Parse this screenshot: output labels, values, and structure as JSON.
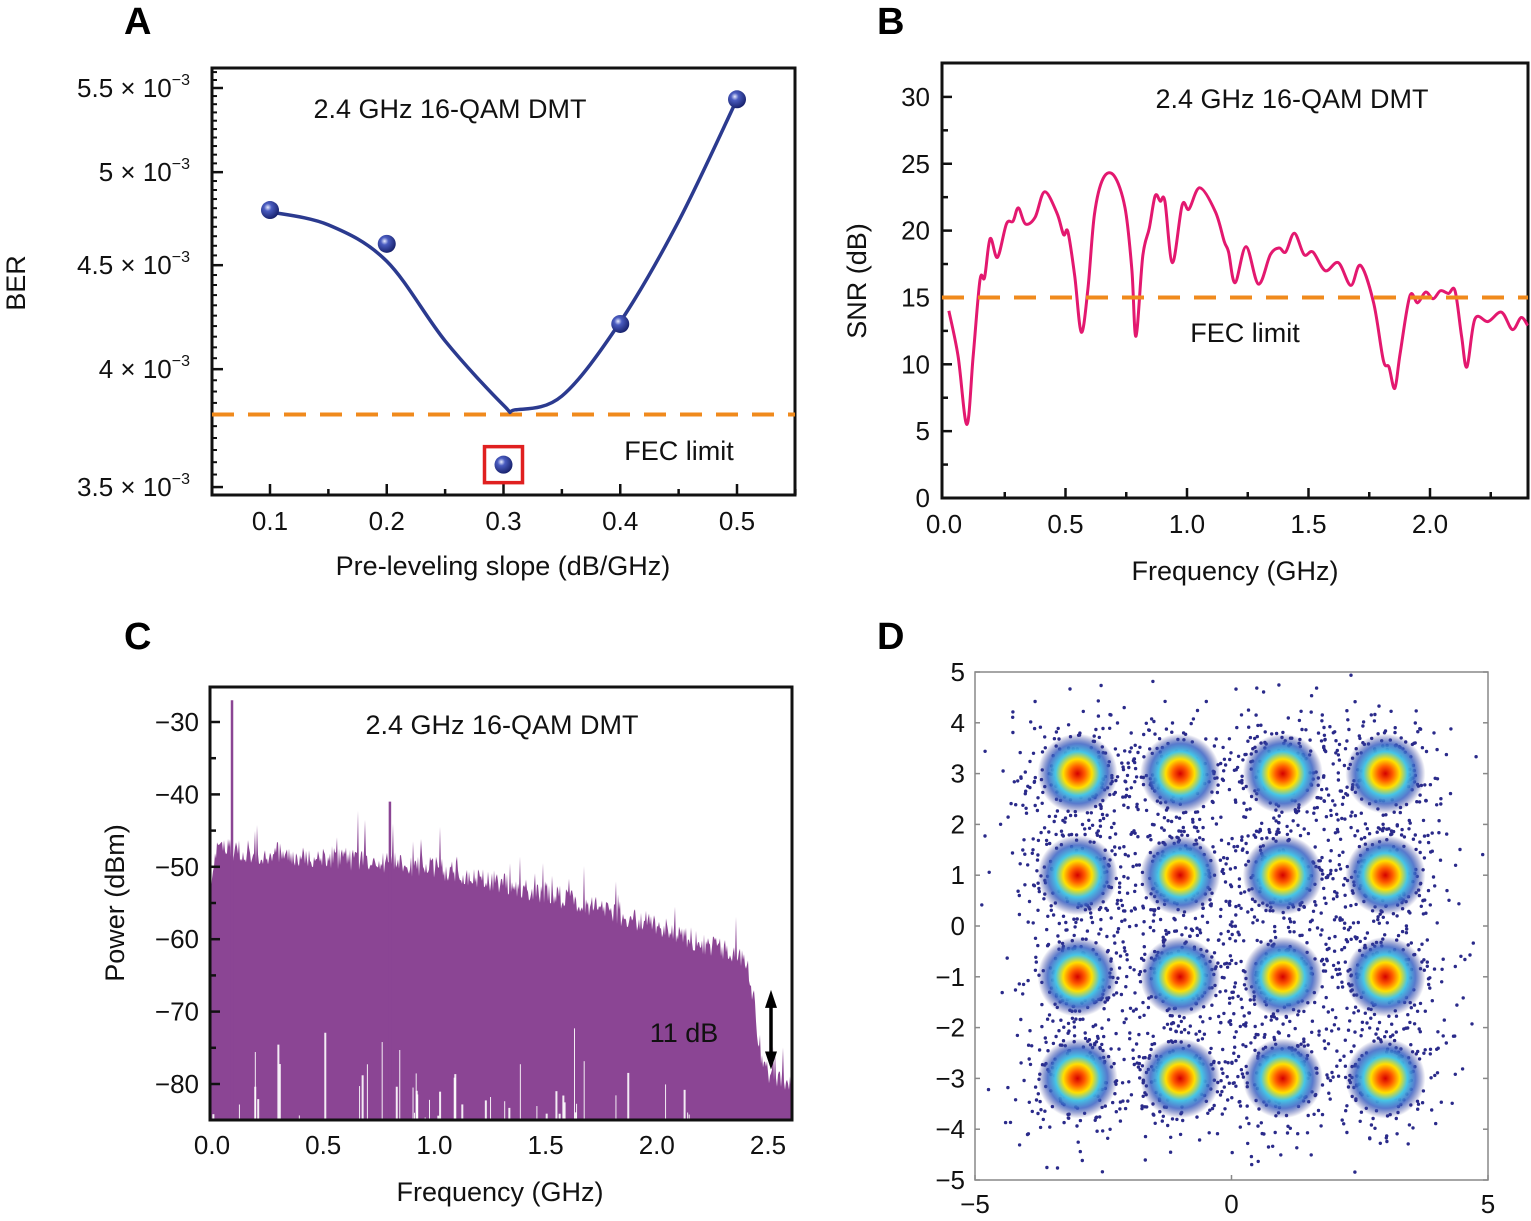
{
  "panel_labels": [
    "A",
    "B",
    "C",
    "D"
  ],
  "colors": {
    "fit_curve": "#2b3a8f",
    "points": "#2b3a9a",
    "fec_line": "#f08a1c",
    "highlight_box": "#e02020",
    "snr_line": "#e3186f",
    "spectrum_fill": "#8b4594",
    "annotation_11db": "#f2e000",
    "constellation_dots": "#2a2a8a"
  },
  "chart_data": [
    {
      "type": "scatter",
      "title": "2.4 GHz 16-QAM DMT",
      "xlabel": "Pre-leveling slope (dB/GHz)",
      "ylabel": "BER",
      "yscale": "log",
      "xlim": [
        0.05,
        0.55
      ],
      "ylim": [
        0.00347,
        0.00562
      ],
      "x_ticks": [
        0.1,
        0.2,
        0.3,
        0.4,
        0.5
      ],
      "x_tick_labels": [
        "0.1",
        "0.2",
        "0.3",
        "0.4",
        "0.5"
      ],
      "y_ticks": [
        0.0055,
        0.005,
        0.0045,
        0.004,
        0.0035
      ],
      "y_tick_labels": [
        {
          "base": "5.5 × 10",
          "exponent": "−3"
        },
        {
          "base": "5 × 10",
          "exponent": "−3"
        },
        {
          "base": "4.5 × 10",
          "exponent": "−3"
        },
        {
          "base": "4 × 10",
          "exponent": "−3"
        },
        {
          "base": "3.5 × 10",
          "exponent": "−3"
        }
      ],
      "points": {
        "x": [
          0.1,
          0.2,
          0.3,
          0.4,
          0.5
        ],
        "y": [
          0.00479,
          0.00461,
          0.00359,
          0.00421,
          0.00543
        ]
      },
      "fit_curve": {
        "x": [
          0.1,
          0.15,
          0.2,
          0.25,
          0.3,
          0.31,
          0.35,
          0.4,
          0.45,
          0.5
        ],
        "y": [
          0.00478,
          0.00471,
          0.00452,
          0.00413,
          0.00384,
          0.00382,
          0.00388,
          0.00422,
          0.00473,
          0.00543
        ]
      },
      "highlighted_point_x": 0.3,
      "fec_limit": {
        "value": 0.0038,
        "label": "FEC limit"
      }
    },
    {
      "type": "line",
      "title": "2.4 GHz 16-QAM DMT",
      "xlabel": "Frequency (GHz)",
      "ylabel": "SNR (dB)",
      "xlim": [
        0,
        2.41
      ],
      "ylim": [
        0,
        32.5
      ],
      "x_ticks": [
        0,
        0.5,
        1.0,
        1.5,
        2.0
      ],
      "x_tick_labels": [
        "0.0",
        "0.5",
        "1.0",
        "1.5",
        "2.0"
      ],
      "y_ticks": [
        0,
        5,
        10,
        15,
        20,
        25,
        30
      ],
      "y_tick_labels": [
        "0",
        "5",
        "10",
        "15",
        "20",
        "25",
        "30"
      ],
      "x": [
        0.02,
        0.058,
        0.094,
        0.12,
        0.148,
        0.167,
        0.19,
        0.22,
        0.257,
        0.284,
        0.306,
        0.335,
        0.375,
        0.414,
        0.465,
        0.492,
        0.51,
        0.538,
        0.565,
        0.592,
        0.619,
        0.655,
        0.7,
        0.745,
        0.773,
        0.79,
        0.818,
        0.845,
        0.869,
        0.89,
        0.909,
        0.94,
        0.98,
        1.008,
        1.053,
        1.117,
        1.153,
        1.171,
        1.198,
        1.243,
        1.294,
        1.343,
        1.379,
        1.406,
        1.442,
        1.482,
        1.518,
        1.569,
        1.623,
        1.674,
        1.714,
        1.768,
        1.808,
        1.831,
        1.855,
        1.877,
        1.917,
        1.949,
        1.982,
        2.013,
        2.043,
        2.076,
        2.103,
        2.13,
        2.152,
        2.185,
        2.239,
        2.294,
        2.339,
        2.375,
        2.402
      ],
      "y": [
        14.0,
        10.6,
        5.5,
        10.6,
        16.3,
        16.5,
        19.4,
        18.0,
        20.5,
        20.7,
        21.7,
        20.5,
        21.0,
        22.9,
        21.3,
        19.7,
        19.9,
        16.6,
        12.4,
        15.6,
        21.2,
        23.9,
        24.1,
        21.7,
        17.1,
        12.1,
        18.1,
        20.2,
        22.6,
        22.2,
        22.2,
        17.6,
        21.9,
        21.6,
        23.2,
        21.4,
        19.2,
        18.4,
        16.1,
        18.8,
        16.0,
        18.2,
        18.7,
        18.4,
        19.8,
        18.2,
        18.4,
        17.0,
        17.6,
        15.9,
        17.4,
        14.6,
        10.3,
        9.8,
        8.2,
        10.8,
        15.1,
        14.6,
        15.4,
        14.9,
        15.5,
        15.3,
        15.5,
        12.1,
        9.8,
        13.4,
        13.2,
        13.9,
        12.6,
        13.5,
        12.9
      ],
      "fec_limit": {
        "value": 15,
        "label": "FEC limit"
      }
    },
    {
      "type": "area",
      "title": "2.4 GHz 16-QAM DMT",
      "xlabel": "Frequency (GHz)",
      "ylabel": "Power (dBm)",
      "xlim": [
        -0.01,
        2.61
      ],
      "ylim": [
        -85,
        -25.2
      ],
      "x_ticks": [
        0,
        0.5,
        1.0,
        1.5,
        2.0,
        2.5
      ],
      "x_tick_labels": [
        "0.0",
        "0.5",
        "1.0",
        "1.5",
        "2.0",
        "2.5"
      ],
      "y_ticks": [
        -30,
        -40,
        -50,
        -60,
        -70,
        -80
      ],
      "y_tick_labels": [
        "−30",
        "−40",
        "−50",
        "−60",
        "−70",
        "−80"
      ],
      "envelope": {
        "x": [
          0.0,
          0.02,
          0.5,
          1.0,
          1.5,
          2.0,
          2.3,
          2.4,
          2.44,
          2.46,
          2.5,
          2.61
        ],
        "y": [
          -50,
          -46,
          -47,
          -48.5,
          -52,
          -56.5,
          -60,
          -61,
          -67,
          -75,
          -77,
          -79
        ]
      },
      "spikes": {
        "x": [
          0.09,
          0.8
        ],
        "y": [
          -27,
          -41
        ]
      },
      "annotation": {
        "label": "11 dB",
        "from": -67,
        "to": -78,
        "x": 2.4
      }
    },
    {
      "type": "scatter",
      "title": "",
      "xlim": [
        -5,
        5
      ],
      "ylim": [
        -5,
        5
      ],
      "x_ticks": [
        -5,
        0,
        5
      ],
      "x_tick_labels": [
        "−5",
        "0",
        "5"
      ],
      "y_ticks": [
        5,
        4,
        3,
        2,
        1,
        0,
        -1,
        -2,
        -3,
        -4,
        -5
      ],
      "y_tick_labels": [
        "5",
        "4",
        "3",
        "2",
        "1",
        "0",
        "−1",
        "−2",
        "−3",
        "−4",
        "−5"
      ],
      "constellation_points": {
        "i": [
          -3,
          -1,
          1,
          3
        ],
        "q": [
          -3,
          -1,
          1,
          3
        ]
      }
    }
  ]
}
